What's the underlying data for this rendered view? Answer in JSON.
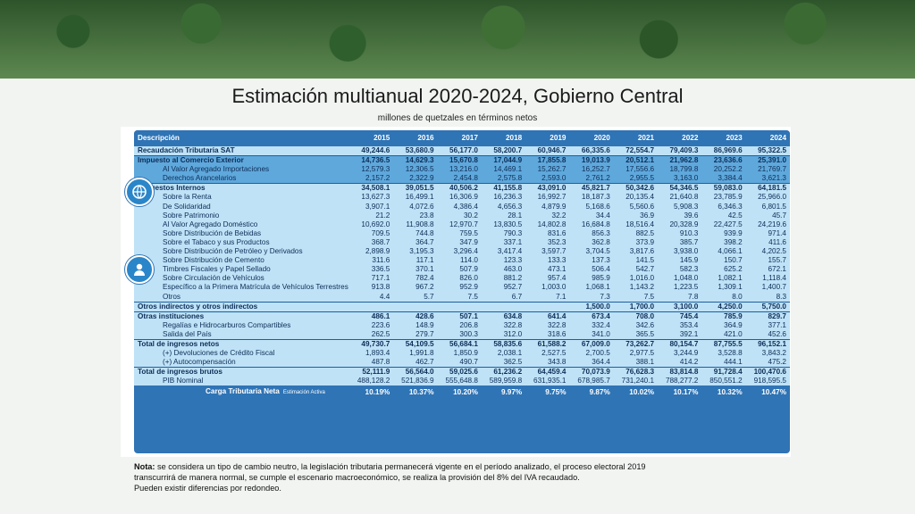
{
  "title": "Estimación multianual 2020-2024, Gobierno Central",
  "subtitle": "millones de quetzales en términos netos",
  "table": {
    "headers": [
      "Descripción",
      "2015",
      "2016",
      "2017",
      "2018",
      "2019",
      "2020",
      "2021",
      "2022",
      "2023",
      "2024"
    ],
    "rows": [
      {
        "label": "Recaudación Tributaria SAT",
        "style": "bold",
        "values": [
          "49,244.6",
          "53,680.9",
          "56,177.0",
          "58,200.7",
          "60,946.7",
          "66,335.6",
          "72,554.7",
          "79,409.3",
          "86,969.6",
          "95,322.5"
        ]
      },
      {
        "label": "Impuesto al Comercio Exterior",
        "style": "bold blue sep",
        "values": [
          "14,736.5",
          "14,629.3",
          "15,670.8",
          "17,044.9",
          "17,855.8",
          "19,013.9",
          "20,512.1",
          "21,962.8",
          "23,636.6",
          "25,391.0"
        ]
      },
      {
        "label": "Al Valor Agregado Importaciones",
        "style": "blue indent",
        "values": [
          "12,579.3",
          "12,306.5",
          "13,216.0",
          "14,469.1",
          "15,262.7",
          "16,252.7",
          "17,556.6",
          "18,799.8",
          "20,252.2",
          "21,769.7"
        ]
      },
      {
        "label": "Derechos Arancelarios",
        "style": "blue indent",
        "values": [
          "2,157.2",
          "2,322.9",
          "2,454.8",
          "2,575.8",
          "2,593.0",
          "2,761.2",
          "2,955.5",
          "3,163.0",
          "3,384.4",
          "3,621.3"
        ]
      },
      {
        "label": "Impuestos Internos",
        "style": "bold sep",
        "values": [
          "34,508.1",
          "39,051.5",
          "40,506.2",
          "41,155.8",
          "43,091.0",
          "45,821.7",
          "50,342.6",
          "54,346.5",
          "59,083.0",
          "64,181.5"
        ]
      },
      {
        "label": "Sobre la Renta",
        "style": "indent",
        "values": [
          "13,627.3",
          "16,499.1",
          "16,306.9",
          "16,236.3",
          "16,992.7",
          "18,187.3",
          "20,135.4",
          "21,640.8",
          "23,785.9",
          "25,966.0"
        ]
      },
      {
        "label": "De Solidaridad",
        "style": "indent",
        "values": [
          "3,907.1",
          "4,072.6",
          "4,386.4",
          "4,656.3",
          "4,879.9",
          "5,168.6",
          "5,560.6",
          "5,908.3",
          "6,346.3",
          "6,801.5"
        ]
      },
      {
        "label": "Sobre Patrimonio",
        "style": "indent",
        "values": [
          "21.2",
          "23.8",
          "30.2",
          "28.1",
          "32.2",
          "34.4",
          "36.9",
          "39.6",
          "42.5",
          "45.7"
        ]
      },
      {
        "label": "Al Valor Agregado Doméstico",
        "style": "indent",
        "values": [
          "10,692.0",
          "11,908.8",
          "12,970.7",
          "13,830.5",
          "14,802.8",
          "16,684.8",
          "18,516.4",
          "20,328.9",
          "22,427.5",
          "24,219.6"
        ]
      },
      {
        "label": "Sobre Distribución de Bebidas",
        "style": "indent",
        "values": [
          "709.5",
          "744.8",
          "759.5",
          "790.3",
          "831.6",
          "856.3",
          "882.5",
          "910.3",
          "939.9",
          "971.4"
        ]
      },
      {
        "label": "Sobre el Tabaco y sus Productos",
        "style": "indent",
        "values": [
          "368.7",
          "364.7",
          "347.9",
          "337.1",
          "352.3",
          "362.8",
          "373.9",
          "385.7",
          "398.2",
          "411.6"
        ]
      },
      {
        "label": "Sobre Distribución de Petróleo y Derivados",
        "style": "indent",
        "values": [
          "2,898.9",
          "3,195.3",
          "3,296.4",
          "3,417.4",
          "3,597.7",
          "3,704.5",
          "3,817.6",
          "3,938.0",
          "4,066.1",
          "4,202.5"
        ]
      },
      {
        "label": "Sobre Distribución de Cemento",
        "style": "indent",
        "values": [
          "311.6",
          "117.1",
          "114.0",
          "123.3",
          "133.3",
          "137.3",
          "141.5",
          "145.9",
          "150.7",
          "155.7"
        ]
      },
      {
        "label": "Timbres Fiscales y Papel Sellado",
        "style": "indent",
        "values": [
          "336.5",
          "370.1",
          "507.9",
          "463.0",
          "473.1",
          "506.4",
          "542.7",
          "582.3",
          "625.2",
          "672.1"
        ]
      },
      {
        "label": "Sobre Circulación de Vehículos",
        "style": "indent",
        "values": [
          "717.1",
          "782.4",
          "826.0",
          "881.2",
          "957.4",
          "985.9",
          "1,016.0",
          "1,048.0",
          "1,082.1",
          "1,118.4"
        ]
      },
      {
        "label": "Específico a la Primera Matrícula de Vehículos Terrestres",
        "style": "indent",
        "values": [
          "913.8",
          "967.2",
          "952.9",
          "952.7",
          "1,003.0",
          "1,068.1",
          "1,143.2",
          "1,223.5",
          "1,309.1",
          "1,400.7"
        ]
      },
      {
        "label": "Otros",
        "style": "indent",
        "values": [
          "4.4",
          "5.7",
          "7.5",
          "6.7",
          "7.1",
          "7.3",
          "7.5",
          "7.8",
          "8.0",
          "8.3"
        ]
      },
      {
        "label": "Otros indirectos y otros indirectos",
        "style": "bold sep",
        "values": [
          "",
          "",
          "",
          "",
          "",
          "1,500.0",
          "1,700.0",
          "3,100.0",
          "4,250.0",
          "5,750.0"
        ]
      },
      {
        "label": "Otras instituciones",
        "style": "bold sep",
        "values": [
          "486.1",
          "428.6",
          "507.1",
          "634.8",
          "641.4",
          "673.4",
          "708.0",
          "745.4",
          "785.9",
          "829.7"
        ]
      },
      {
        "label": "Regalías e Hidrocarburos Compartibles",
        "style": "indent",
        "values": [
          "223.6",
          "148.9",
          "206.8",
          "322.8",
          "322.8",
          "332.4",
          "342.6",
          "353.4",
          "364.9",
          "377.1"
        ]
      },
      {
        "label": "Salida del País",
        "style": "indent",
        "values": [
          "262.5",
          "279.7",
          "300.3",
          "312.0",
          "318.6",
          "341.0",
          "365.5",
          "392.1",
          "421.0",
          "452.6"
        ]
      },
      {
        "label": "Total de ingresos netos",
        "style": "bold sep",
        "values": [
          "49,730.7",
          "54,109.5",
          "56,684.1",
          "58,835.6",
          "61,588.2",
          "67,009.0",
          "73,262.7",
          "80,154.7",
          "87,755.5",
          "96,152.1"
        ]
      },
      {
        "label": "(+) Devoluciones de Crédito Fiscal",
        "style": "indent",
        "values": [
          "1,893.4",
          "1,991.8",
          "1,850.9",
          "2,038.1",
          "2,527.5",
          "2,700.5",
          "2,977.5",
          "3,244.9",
          "3,528.8",
          "3,843.2"
        ]
      },
      {
        "label": "(+) Autocompensación",
        "style": "indent",
        "values": [
          "487.8",
          "462.7",
          "490.7",
          "362.5",
          "343.8",
          "364.4",
          "388.1",
          "414.2",
          "444.1",
          "475.2"
        ]
      },
      {
        "label": "Total de ingresos brutos",
        "style": "bold sep",
        "values": [
          "52,111.9",
          "56,564.0",
          "59,025.6",
          "61,236.2",
          "64,459.4",
          "70,073.9",
          "76,628.3",
          "83,814.8",
          "91,728.4",
          "100,470.6"
        ]
      },
      {
        "label": "PIB Nominal",
        "style": "indent",
        "values": [
          "488,128.2",
          "521,836.9",
          "555,648.8",
          "589,959.8",
          "631,935.1",
          "678,985.7",
          "731,240.1",
          "788,277.2",
          "850,551.2",
          "918,595.5"
        ]
      }
    ],
    "footer": {
      "label": "Carga Tributaria Neta",
      "note": "Estimación Activa",
      "values": [
        "10.19%",
        "10.37%",
        "10.20%",
        "9.97%",
        "9.75%",
        "9.87%",
        "10.02%",
        "10.17%",
        "10.32%",
        "10.47%"
      ]
    }
  },
  "icons": [
    "globe-icon",
    "person-icon"
  ],
  "nota": {
    "label": "Nota:",
    "line1": "se considera un tipo de cambio neutro, la legislación tributaria permanecerá vigente en el período analizado, el proceso electoral 2019",
    "line2": "transcurrirá de manera normal, se cumple el escenario macroeconómico, se realiza la provisión del 8% del IVA recaudado.",
    "line3": "Pueden existir diferencias por redondeo."
  }
}
